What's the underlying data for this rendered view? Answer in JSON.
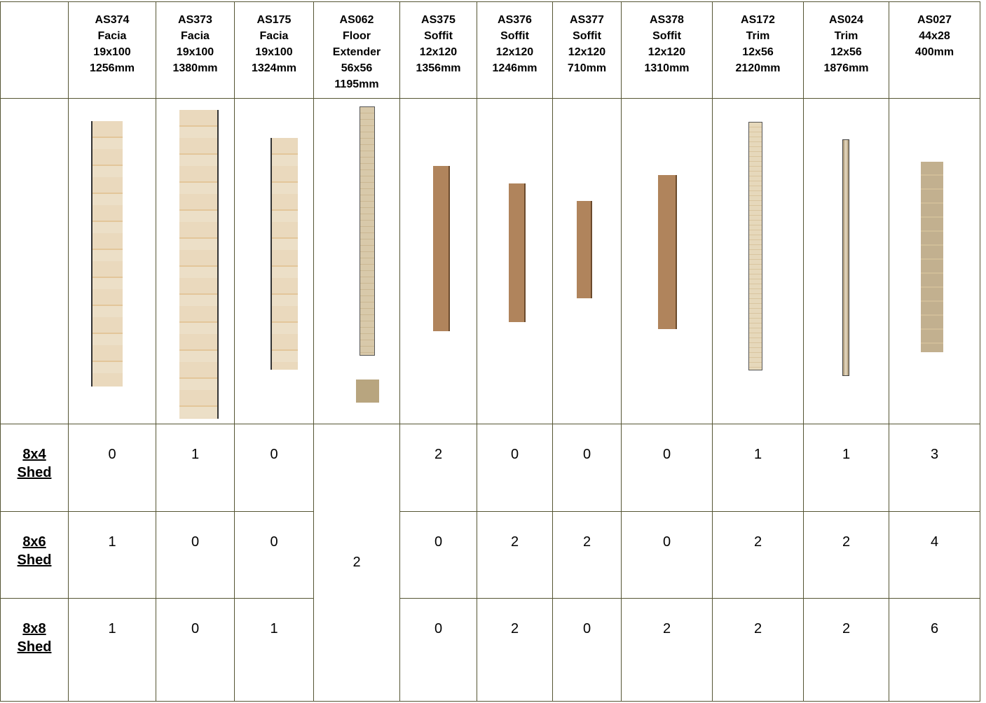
{
  "table": {
    "columns": [
      [
        "AS374",
        "Facia",
        "19x100",
        "1256mm"
      ],
      [
        "AS373",
        "Facia",
        "19x100",
        "1380mm"
      ],
      [
        "AS175",
        "Facia",
        "19x100",
        "1324mm"
      ],
      [
        "AS062",
        "Floor",
        "Extender",
        "56x56",
        "1195mm"
      ],
      [
        "AS375",
        "Soffit",
        "12x120",
        "1356mm"
      ],
      [
        "AS376",
        "Soffit",
        "12x120",
        "1246mm"
      ],
      [
        "AS377",
        "Soffit",
        "12x120",
        "710mm"
      ],
      [
        "AS378",
        "Soffit",
        "12x120",
        "1310mm"
      ],
      [
        "AS172",
        "Trim",
        "12x56",
        "2120mm"
      ],
      [
        "AS024",
        "Trim",
        "12x56",
        "1876mm"
      ],
      [
        "AS027",
        "44x28",
        "400mm"
      ]
    ],
    "rows": [
      {
        "label": [
          "8x4",
          "Shed"
        ],
        "cells": [
          0,
          1,
          0,
          2,
          0,
          0,
          0,
          1,
          1,
          3
        ]
      },
      {
        "label": [
          "8x6",
          "Shed"
        ],
        "cells": [
          1,
          0,
          0,
          0,
          2,
          2,
          0,
          2,
          2,
          4
        ]
      },
      {
        "label": [
          "8x8",
          "Shed"
        ],
        "cells": [
          1,
          0,
          1,
          0,
          2,
          0,
          2,
          2,
          2,
          6
        ]
      }
    ],
    "spanning_value": 2
  }
}
